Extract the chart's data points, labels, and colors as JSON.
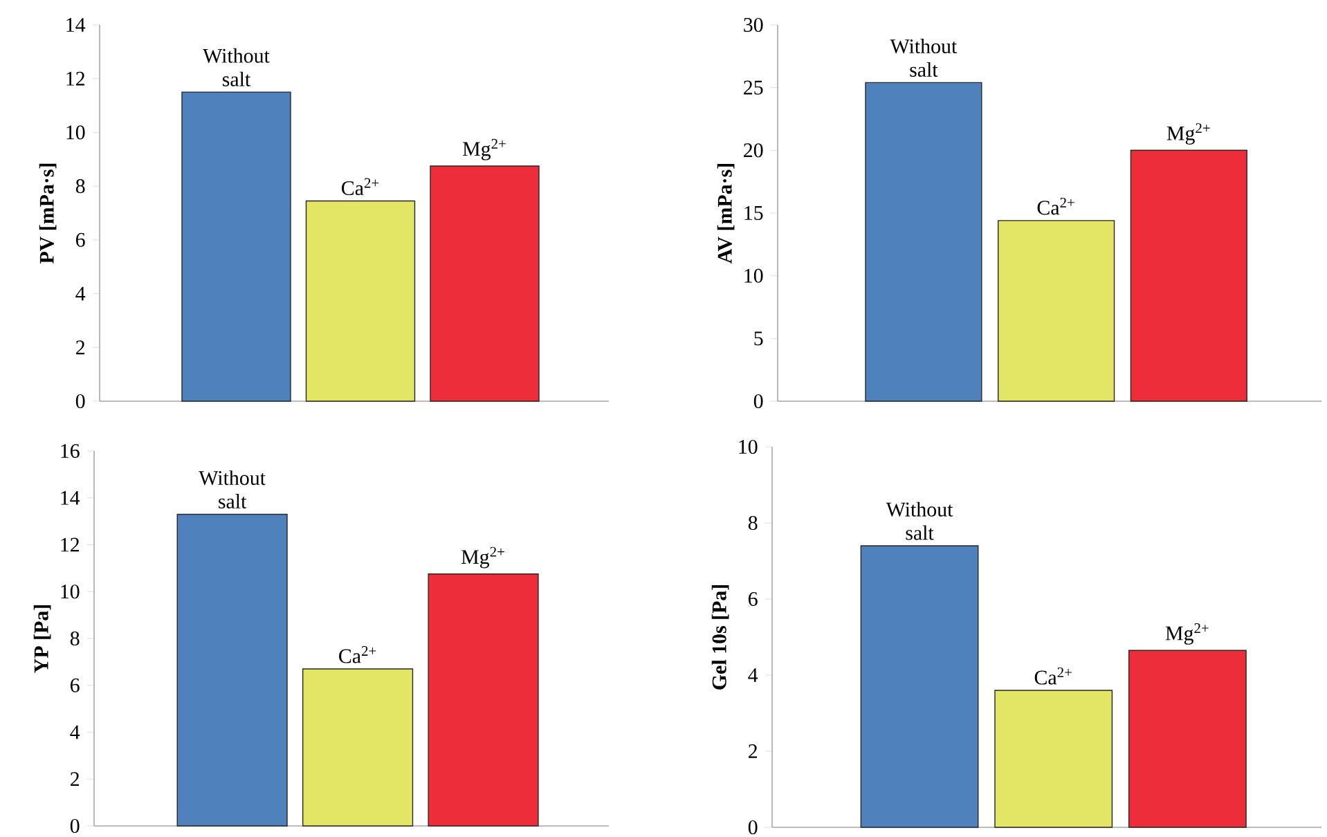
{
  "chart_data": [
    {
      "type": "bar",
      "ylabel": "PV [mPa·s]",
      "categories": [
        "Without salt",
        "Ca$^{2+}$",
        "Mg$^{2+}$"
      ],
      "values": [
        11.5,
        7.45,
        8.75
      ],
      "colors": [
        "#4f81bd",
        "#e3e665",
        "#ee2d3a"
      ],
      "ylim": [
        0,
        14
      ],
      "yticks": [
        0,
        2,
        4,
        6,
        8,
        10,
        12,
        14
      ],
      "grid": false
    },
    {
      "type": "bar",
      "ylabel": "AV [mPa·s]",
      "categories": [
        "Without salt",
        "Ca$^{2+}$",
        "Mg$^{2+}$"
      ],
      "values": [
        25.4,
        14.4,
        20.0
      ],
      "colors": [
        "#4f81bd",
        "#e3e665",
        "#ee2d3a"
      ],
      "ylim": [
        0,
        30
      ],
      "yticks": [
        0,
        5,
        10,
        15,
        20,
        25,
        30
      ],
      "grid": false
    },
    {
      "type": "bar",
      "ylabel": "YP [Pa]",
      "categories": [
        "Without salt",
        "Ca$^{2+}$",
        "Mg$^{2+}$"
      ],
      "values": [
        13.3,
        6.7,
        10.75
      ],
      "colors": [
        "#4f81bd",
        "#e3e665",
        "#ee2d3a"
      ],
      "ylim": [
        0,
        16
      ],
      "yticks": [
        0,
        2,
        4,
        6,
        8,
        10,
        12,
        14,
        16
      ],
      "grid": false
    },
    {
      "type": "bar",
      "ylabel": "Gel 10s [Pa]",
      "categories": [
        "Without salt",
        "Ca$^{2+}$",
        "Mg$^{2+}$"
      ],
      "values": [
        7.4,
        3.6,
        4.65
      ],
      "colors": [
        "#4f81bd",
        "#e3e665",
        "#ee2d3a"
      ],
      "ylim": [
        0,
        10
      ],
      "yticks": [
        0,
        2,
        4,
        6,
        8,
        10
      ],
      "grid": false
    }
  ]
}
